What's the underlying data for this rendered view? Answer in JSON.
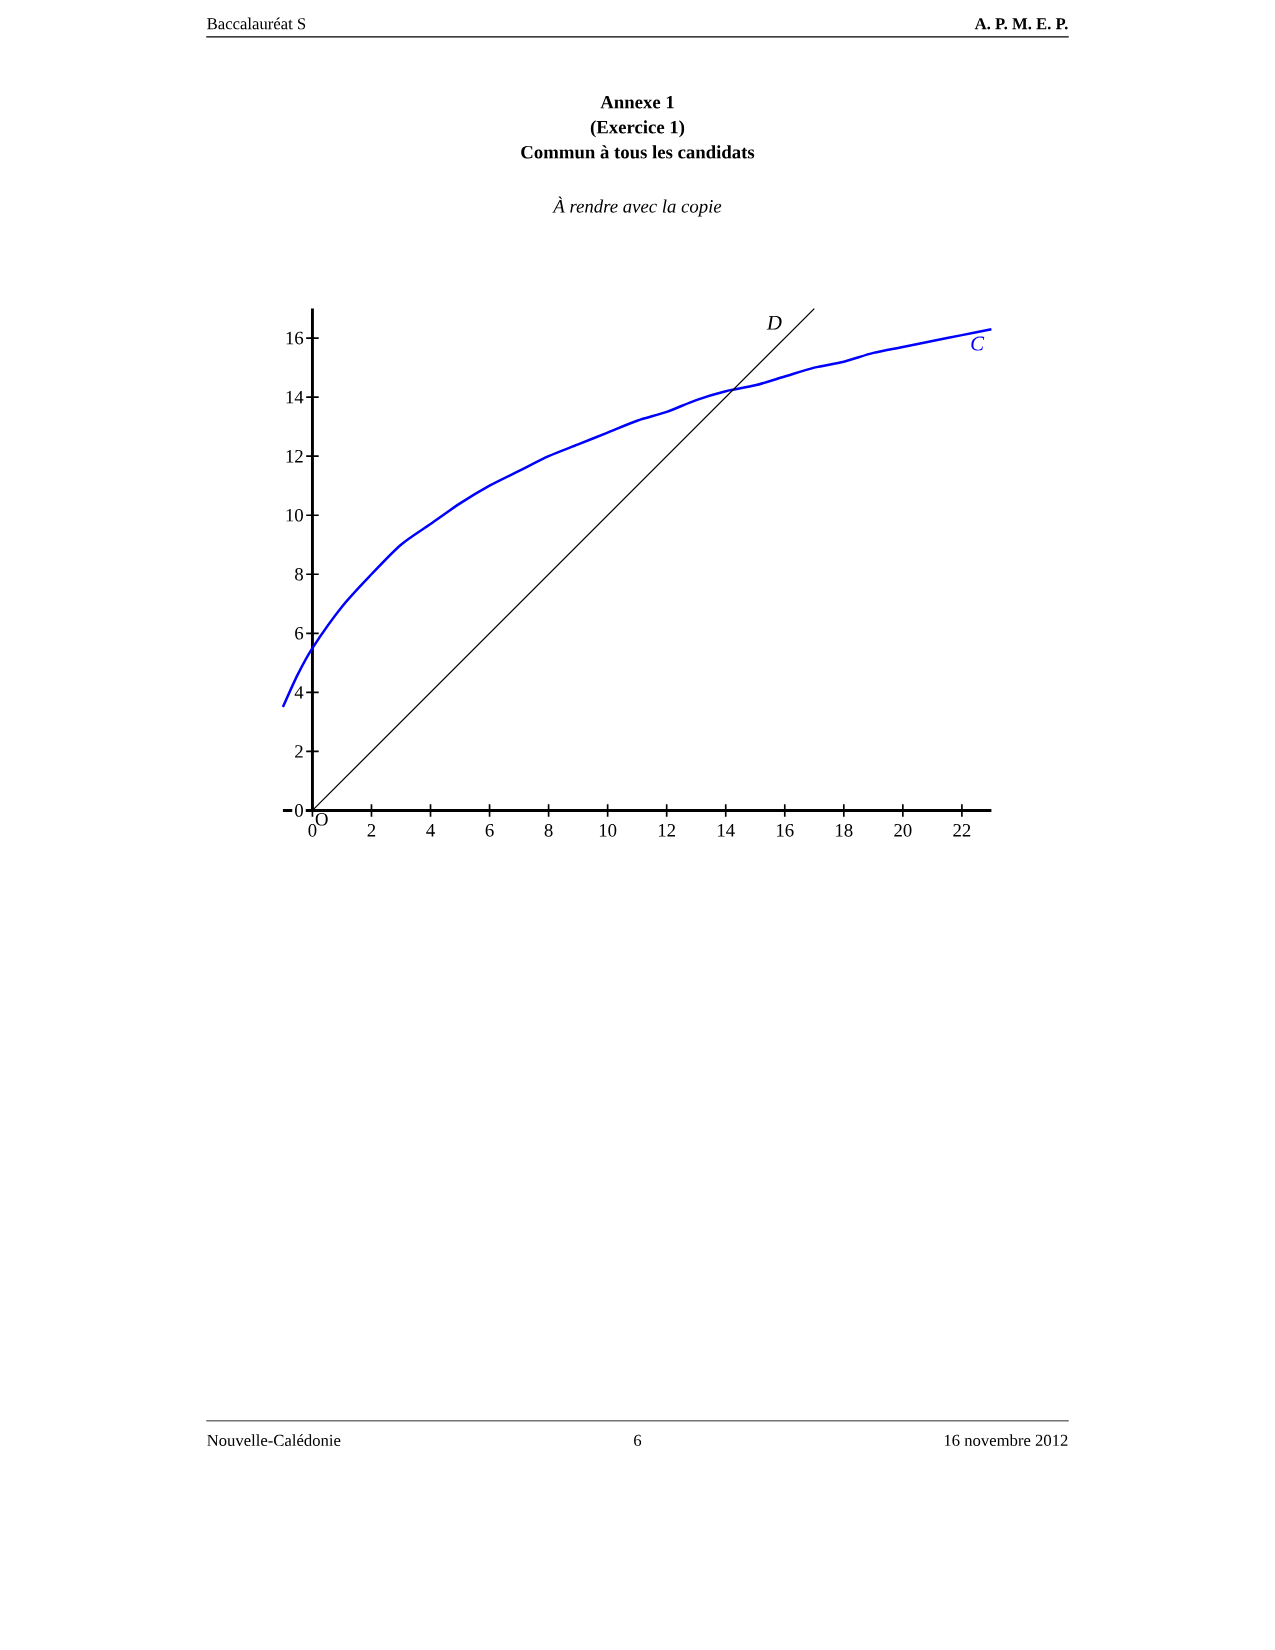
{
  "chart_data": {
    "type": "line",
    "title": "Annexe 1",
    "subtitle": "(Exercice 1)",
    "annotations": [
      "Commun à tous les candidats",
      "À rendre avec la copie",
      "Baccalauréat S",
      "A. P. M. E. P.",
      "Nouvelle-Calédonie",
      "6",
      "16 novembre 2012",
      {
        "text": "O",
        "x": 0,
        "y": 0
      }
    ],
    "series": [
      {
        "name": "C",
        "color": "#0000ff",
        "x": [
          -1,
          -0.5,
          0,
          1,
          2,
          3,
          4,
          5,
          6,
          7,
          8,
          9,
          10,
          11,
          12,
          13,
          14,
          15,
          16,
          17,
          18,
          19,
          20,
          21,
          22,
          23
        ],
        "values": [
          3.5,
          4.6,
          5.5,
          6.9,
          8.0,
          9.0,
          9.7,
          10.4,
          11.0,
          11.5,
          12.0,
          12.4,
          12.8,
          13.2,
          13.5,
          13.9,
          14.2,
          14.4,
          14.7,
          15.0,
          15.2,
          15.5,
          15.7,
          15.9,
          16.1,
          16.3
        ]
      },
      {
        "name": "D",
        "color": "#000000",
        "x": [
          0,
          17
        ],
        "values": [
          0,
          17
        ]
      }
    ],
    "xlim": [
      -1,
      23
    ],
    "ylim": [
      0,
      17
    ],
    "xticks": [
      0,
      2,
      4,
      6,
      8,
      10,
      12,
      14,
      16,
      18,
      20,
      22
    ],
    "yticks": [
      0,
      2,
      4,
      6,
      8,
      10,
      12,
      14,
      16
    ],
    "line_style": "solid",
    "legend": false,
    "grid": false
  }
}
